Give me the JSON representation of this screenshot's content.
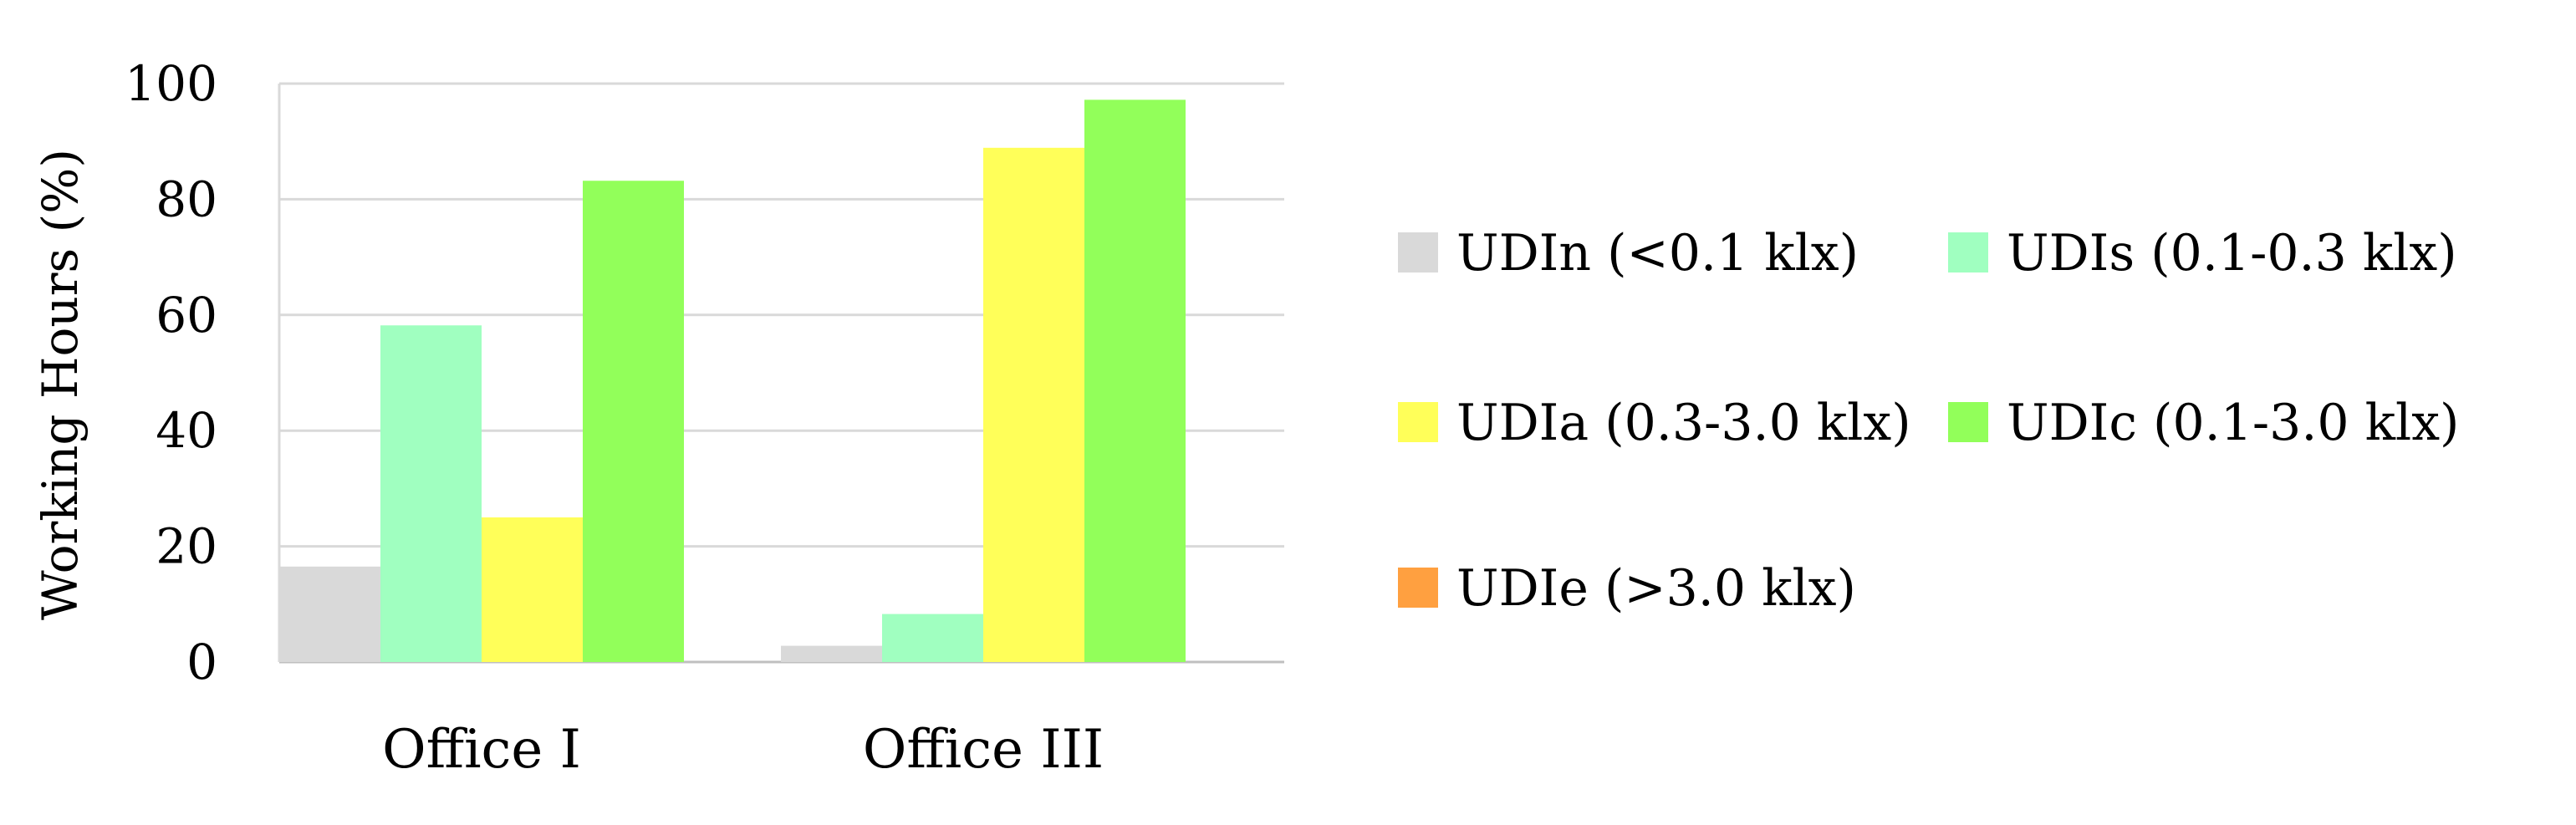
{
  "chart_data": {
    "type": "bar",
    "categories": [
      "Office I",
      "Office III"
    ],
    "series": [
      {
        "name": "UDIn (<0.1 klx)",
        "color": "#d9d9d9",
        "values": [
          16.5,
          2.8
        ]
      },
      {
        "name": "UDIs (0.1-0.3 klx)",
        "color": "#a0ffc0",
        "values": [
          58.2,
          8.3
        ]
      },
      {
        "name": "UDIa (0.3-3.0 klx)",
        "color": "#ffff59",
        "values": [
          25.0,
          88.9
        ]
      },
      {
        "name": "UDIc (0.1-3.0 klx)",
        "color": "#92ff5a",
        "values": [
          83.2,
          97.2
        ]
      },
      {
        "name": "UDIe (>3.0 klx)",
        "color": "#ffa040",
        "values": [
          0,
          0
        ]
      }
    ],
    "ylabel": "Working Hours (%)",
    "xlabel": "",
    "ylim": [
      0,
      100
    ],
    "yticks": [
      0,
      20,
      40,
      60,
      80,
      100
    ],
    "grid": true,
    "legend_position": "right"
  }
}
